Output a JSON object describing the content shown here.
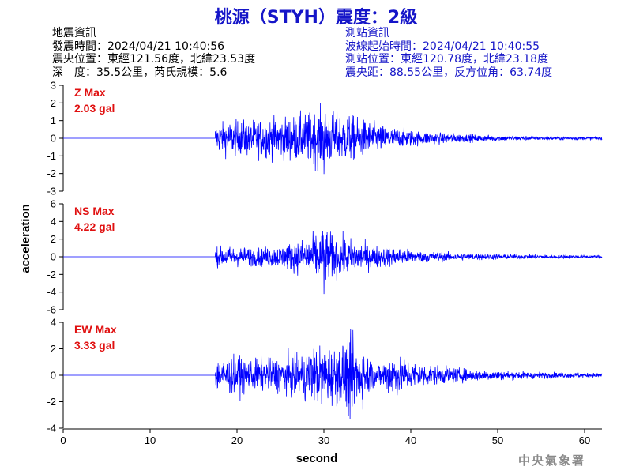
{
  "title": "桃源（STYH）震度：2級",
  "earthquake_info": {
    "heading": "地震資訊",
    "origin_time": "發震時間：2024/04/21 10:40:56",
    "epicenter": "震央位置：東經121.56度，北緯23.53度",
    "depth_magnitude": "深　度：35.5公里，芮氏規模：5.6"
  },
  "station_info": {
    "heading": "測站資訊",
    "wave_onset": "波線起始時間：2024/04/21 10:40:55",
    "station_location": "測站位置：東經120.78度，北緯23.18度",
    "distance_azimuth": "震央距：88.55公里，反方位角：63.74度"
  },
  "agency": "中央氣象署",
  "colors": {
    "title": "#1515c8",
    "trace": "#0000ff",
    "label": "#e01010",
    "station": "#1515c8"
  },
  "chart_data": {
    "type": "line",
    "xlabel": "second",
    "ylabel": "acceleration",
    "xlim": [
      0,
      62
    ],
    "x_ticks": [
      0,
      10,
      20,
      30,
      40,
      50,
      60
    ],
    "panels": [
      {
        "label": "Z Max",
        "max_value": "2.03 gal",
        "ylim": [
          -3,
          3
        ],
        "y_ticks": [
          -3,
          -2,
          -1,
          0,
          1,
          2,
          3
        ],
        "onset_s": 17.5,
        "peak": 2.03,
        "envelope": [
          [
            17.5,
            0.9
          ],
          [
            19,
            1.1
          ],
          [
            22,
            1.2
          ],
          [
            25,
            1.3
          ],
          [
            28,
            1.6
          ],
          [
            30,
            1.9
          ],
          [
            31,
            1.7
          ],
          [
            33,
            1.5
          ],
          [
            35,
            1.1
          ],
          [
            38,
            0.7
          ],
          [
            41,
            0.45
          ],
          [
            45,
            0.3
          ],
          [
            50,
            0.18
          ],
          [
            55,
            0.12
          ],
          [
            62,
            0.1
          ]
        ]
      },
      {
        "label": "NS Max",
        "max_value": "4.22 gal",
        "ylim": [
          -6,
          6
        ],
        "y_ticks": [
          -6,
          -4,
          -2,
          0,
          2,
          4,
          6
        ],
        "onset_s": 17.5,
        "peak": 4.22,
        "envelope": [
          [
            17.5,
            1.2
          ],
          [
            19,
            1.3
          ],
          [
            22,
            1.2
          ],
          [
            25,
            1.4
          ],
          [
            28,
            2.4
          ],
          [
            30,
            3.6
          ],
          [
            31.5,
            2.6
          ],
          [
            33,
            2.3
          ],
          [
            35,
            1.6
          ],
          [
            38,
            1.2
          ],
          [
            41,
            0.8
          ],
          [
            45,
            0.5
          ],
          [
            50,
            0.35
          ],
          [
            55,
            0.25
          ],
          [
            62,
            0.2
          ]
        ]
      },
      {
        "label": "EW Max",
        "max_value": "3.33 gal",
        "ylim": [
          -4,
          4
        ],
        "y_ticks": [
          -4,
          -2,
          0,
          2,
          4
        ],
        "onset_s": 17.5,
        "peak": 3.33,
        "envelope": [
          [
            17.5,
            1.4
          ],
          [
            19,
            1.6
          ],
          [
            22,
            1.4
          ],
          [
            25,
            1.5
          ],
          [
            28,
            2.2
          ],
          [
            30,
            2.6
          ],
          [
            31.5,
            2.4
          ],
          [
            33,
            3.3
          ],
          [
            34.5,
            2.3
          ],
          [
            36,
            0.9
          ],
          [
            38,
            2.0
          ],
          [
            40,
            1.2
          ],
          [
            43,
            0.8
          ],
          [
            47,
            0.5
          ],
          [
            52,
            0.35
          ],
          [
            57,
            0.25
          ],
          [
            62,
            0.2
          ]
        ]
      }
    ]
  }
}
